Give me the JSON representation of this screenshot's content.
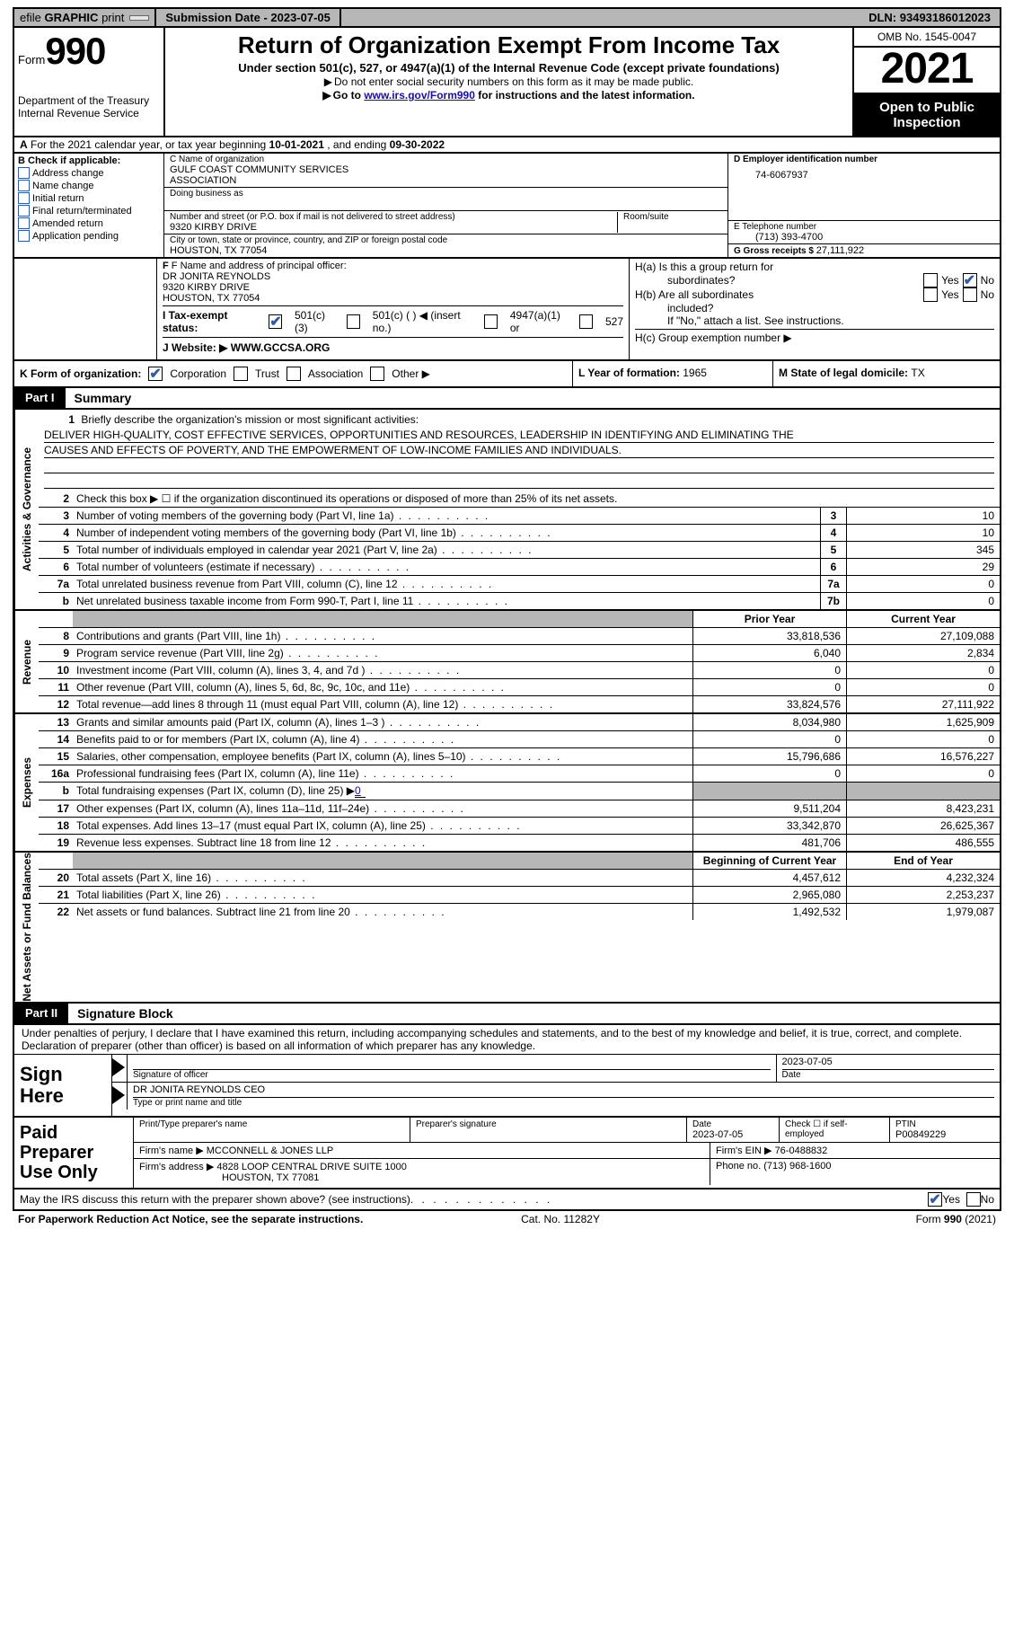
{
  "topbar": {
    "efile_prefix": "efile",
    "efile_bold": "GRAPHIC",
    "efile_suffix": "print",
    "submission_label": "Submission Date - ",
    "submission_date": "2023-07-05",
    "dln_label": "DLN: ",
    "dln": "93493186012023"
  },
  "header": {
    "form_label": "Form",
    "form_number": "990",
    "dept": "Department of the Treasury",
    "irs": "Internal Revenue Service",
    "title": "Return of Organization Exempt From Income Tax",
    "subtitle": "Under section 501(c), 527, or 4947(a)(1) of the Internal Revenue Code (except private foundations)",
    "note1": "Do not enter social security numbers on this form as it may be made public.",
    "note2_pre": "Go to ",
    "note2_link": "www.irs.gov/Form990",
    "note2_post": " for instructions and the latest information.",
    "omb": "OMB No. 1545-0047",
    "year": "2021",
    "open": "Open to Public Inspection"
  },
  "row_a": {
    "prefix": "A",
    "text1": "For the 2021 calendar year, or tax year beginning ",
    "begin": "10-01-2021",
    "text2": "  , and ending ",
    "end": "09-30-2022"
  },
  "section_b": {
    "header": "B Check if applicable:",
    "items": [
      "Address change",
      "Name change",
      "Initial return",
      "Final return/terminated",
      "Amended return",
      "Application pending"
    ]
  },
  "section_c": {
    "name_label": "C Name of organization",
    "name1": "GULF COAST COMMUNITY SERVICES",
    "name2": "ASSOCIATION",
    "dba_label": "Doing business as",
    "addr_label": "Number and street (or P.O. box if mail is not delivered to street address)",
    "suite_label": "Room/suite",
    "addr": "9320 KIRBY DRIVE",
    "city_label": "City or town, state or province, country, and ZIP or foreign postal code",
    "city": "HOUSTON, TX  77054"
  },
  "section_d": {
    "ein_label": "D Employer identification number",
    "ein": "74-6067937",
    "tel_label": "E Telephone number",
    "tel": "(713) 393-4700",
    "gross_label": "G Gross receipts $ ",
    "gross": "27,111,922"
  },
  "section_f": {
    "label": "F Name and address of principal officer:",
    "line1": "DR JONITA REYNOLDS",
    "line2": "9320 KIRBY DRIVE",
    "line3": "HOUSTON, TX  77054"
  },
  "section_h": {
    "ha1": "H(a)  Is this a group return for",
    "ha2": "subordinates?",
    "ha_no_checked": true,
    "hb1": "H(b)  Are all subordinates",
    "hb2": "included?",
    "hb_note": "If \"No,\" attach a list. See instructions.",
    "hc": "H(c)  Group exemption number ▶"
  },
  "row_i": {
    "label": "I    Tax-exempt status:",
    "opt1": "501(c)(3)",
    "opt2": "501(c) (  ) ◀ (insert no.)",
    "opt3": "4947(a)(1) or",
    "opt4": "527"
  },
  "row_j": {
    "label": "J   Website: ▶",
    "url": "WWW.GCCSA.ORG"
  },
  "row_k": {
    "label": "K Form of organization:",
    "opts": [
      "Corporation",
      "Trust",
      "Association",
      "Other ▶"
    ],
    "l_label": "L Year of formation: ",
    "l_val": "1965",
    "m_label": "M State of legal domicile: ",
    "m_val": "TX"
  },
  "part1": {
    "tab": "Part I",
    "title": "Summary"
  },
  "summary_groups": [
    {
      "vlabel": "Activities & Governance",
      "rows": [
        {
          "type": "mission",
          "num": "1",
          "desc": "Briefly describe the organization's mission or most significant activities:",
          "lines": [
            "DELIVER HIGH-QUALITY, COST EFFECTIVE SERVICES, OPPORTUNITIES AND RESOURCES, LEADERSHIP IN IDENTIFYING AND ELIMINATING THE",
            "CAUSES AND EFFECTS OF POVERTY, AND THE EMPOWERMENT OF LOW-INCOME FAMILIES AND INDIVIDUALS.",
            "",
            ""
          ]
        },
        {
          "type": "check",
          "num": "2",
          "desc": "Check this box ▶ ☐ if the organization discontinued its operations or disposed of more than 25% of its net assets."
        },
        {
          "type": "num",
          "num": "3",
          "desc": "Number of voting members of the governing body (Part VI, line 1a)",
          "box": "3",
          "val": "10"
        },
        {
          "type": "num",
          "num": "4",
          "desc": "Number of independent voting members of the governing body (Part VI, line 1b)",
          "box": "4",
          "val": "10"
        },
        {
          "type": "num",
          "num": "5",
          "desc": "Total number of individuals employed in calendar year 2021 (Part V, line 2a)",
          "box": "5",
          "val": "345"
        },
        {
          "type": "num",
          "num": "6",
          "desc": "Total number of volunteers (estimate if necessary)",
          "box": "6",
          "val": "29"
        },
        {
          "type": "num",
          "num": "7a",
          "desc": "Total unrelated business revenue from Part VIII, column (C), line 12",
          "box": "7a",
          "val": "0"
        },
        {
          "type": "num",
          "num": "b",
          "desc": "Net unrelated business taxable income from Form 990-T, Part I, line 11",
          "box": "7b",
          "val": "0",
          "no_bottom": true
        }
      ]
    },
    {
      "vlabel": "Revenue",
      "header": {
        "prior": "Prior Year",
        "current": "Current Year"
      },
      "rows": [
        {
          "type": "2col",
          "num": "8",
          "desc": "Contributions and grants (Part VIII, line 1h)",
          "prior": "33,818,536",
          "current": "27,109,088"
        },
        {
          "type": "2col",
          "num": "9",
          "desc": "Program service revenue (Part VIII, line 2g)",
          "prior": "6,040",
          "current": "2,834"
        },
        {
          "type": "2col",
          "num": "10",
          "desc": "Investment income (Part VIII, column (A), lines 3, 4, and 7d )",
          "prior": "0",
          "current": "0"
        },
        {
          "type": "2col",
          "num": "11",
          "desc": "Other revenue (Part VIII, column (A), lines 5, 6d, 8c, 9c, 10c, and 11e)",
          "prior": "0",
          "current": "0"
        },
        {
          "type": "2col",
          "num": "12",
          "desc": "Total revenue—add lines 8 through 11 (must equal Part VIII, column (A), line 12)",
          "prior": "33,824,576",
          "current": "27,111,922",
          "no_bottom": true
        }
      ]
    },
    {
      "vlabel": "Expenses",
      "rows": [
        {
          "type": "2col",
          "num": "13",
          "desc": "Grants and similar amounts paid (Part IX, column (A), lines 1–3 )",
          "prior": "8,034,980",
          "current": "1,625,909"
        },
        {
          "type": "2col",
          "num": "14",
          "desc": "Benefits paid to or for members (Part IX, column (A), line 4)",
          "prior": "0",
          "current": "0"
        },
        {
          "type": "2col",
          "num": "15",
          "desc": "Salaries, other compensation, employee benefits (Part IX, column (A), lines 5–10)",
          "prior": "15,796,686",
          "current": "16,576,227"
        },
        {
          "type": "2col",
          "num": "16a",
          "desc": "Professional fundraising fees (Part IX, column (A), line 11e)",
          "prior": "0",
          "current": "0"
        },
        {
          "type": "2col_grey",
          "num": "b",
          "desc_html": "Total fundraising expenses (Part IX, column (D), line 25) ▶<span class='link underline'>0</span>"
        },
        {
          "type": "2col",
          "num": "17",
          "desc": "Other expenses (Part IX, column (A), lines 11a–11d, 11f–24e)",
          "prior": "9,511,204",
          "current": "8,423,231"
        },
        {
          "type": "2col",
          "num": "18",
          "desc": "Total expenses. Add lines 13–17 (must equal Part IX, column (A), line 25)",
          "prior": "33,342,870",
          "current": "26,625,367"
        },
        {
          "type": "2col",
          "num": "19",
          "desc": "Revenue less expenses. Subtract line 18 from line 12",
          "prior": "481,706",
          "current": "486,555",
          "no_bottom": true
        }
      ]
    },
    {
      "vlabel": "Net Assets or Fund Balances",
      "header": {
        "prior": "Beginning of Current Year",
        "current": "End of Year"
      },
      "rows": [
        {
          "type": "2col",
          "num": "20",
          "desc": "Total assets (Part X, line 16)",
          "prior": "4,457,612",
          "current": "4,232,324"
        },
        {
          "type": "2col",
          "num": "21",
          "desc": "Total liabilities (Part X, line 26)",
          "prior": "2,965,080",
          "current": "2,253,237"
        },
        {
          "type": "2col",
          "num": "22",
          "desc": "Net assets or fund balances. Subtract line 21 from line 20",
          "prior": "1,492,532",
          "current": "1,979,087",
          "no_bottom": true
        }
      ]
    }
  ],
  "part2": {
    "tab": "Part II",
    "title": "Signature Block"
  },
  "penalties": "Under penalties of perjury, I declare that I have examined this return, including accompanying schedules and statements, and to the best of my knowledge and belief, it is true, correct, and complete. Declaration of preparer (other than officer) is based on all information of which preparer has any knowledge.",
  "sign": {
    "label": "Sign Here",
    "sig_officer_label": "Signature of officer",
    "date_val": "2023-07-05",
    "date_label": "Date",
    "name_val": "DR JONITA REYNOLDS  CEO",
    "name_label": "Type or print name and title"
  },
  "prep": {
    "label": "Paid Preparer Use Only",
    "r1": {
      "c1_label": "Print/Type preparer's name",
      "c2_label": "Preparer's signature",
      "c3_label": "Date",
      "c3_val": "2023-07-05",
      "c4_label": "Check ☐ if self-employed",
      "c5_label": "PTIN",
      "c5_val": "P00849229"
    },
    "r2": {
      "firm_label": "Firm's name    ▶",
      "firm": "MCCONNELL & JONES LLP",
      "ein_label": "Firm's EIN ▶ ",
      "ein": "76-0488832"
    },
    "r3": {
      "addr_label": "Firm's address ▶",
      "addr1": "4828 LOOP CENTRAL DRIVE SUITE 1000",
      "addr2": "HOUSTON, TX  77081",
      "phone_label": "Phone no. ",
      "phone": "(713) 968-1600"
    }
  },
  "discuss": {
    "text": "May the IRS discuss this return with the preparer shown above? (see instructions)",
    "yes_checked": true
  },
  "footer": {
    "left": "For Paperwork Reduction Act Notice, see the separate instructions.",
    "mid": "Cat. No. 11282Y",
    "right": "Form 990 (2021)"
  }
}
